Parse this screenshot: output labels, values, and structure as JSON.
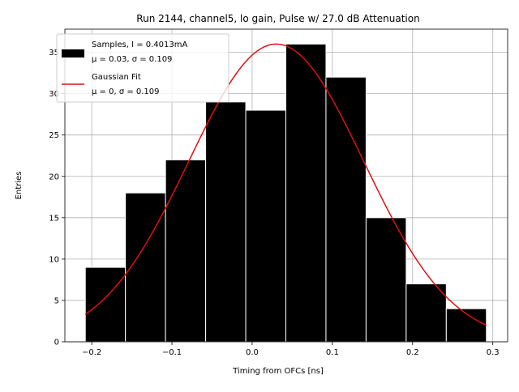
{
  "chart_data": {
    "type": "bar",
    "title": "Run 2144, channel5, lo gain, Pulse w/ 27.0 dB Attenuation",
    "xlabel": "Timing from OFCs [ns]",
    "ylabel": "Entries",
    "xlim": [
      -0.2335,
      0.3185
    ],
    "ylim": [
      0,
      37.8
    ],
    "grid": true,
    "x_ticks": [
      {
        "value": -0.2,
        "label": "−0.2"
      },
      {
        "value": -0.1,
        "label": "−0.1"
      },
      {
        "value": 0.0,
        "label": "0.0"
      },
      {
        "value": 0.1,
        "label": "0.1"
      },
      {
        "value": 0.2,
        "label": "0.2"
      },
      {
        "value": 0.3,
        "label": "0.3"
      }
    ],
    "y_ticks": [
      {
        "value": 0,
        "label": "0"
      },
      {
        "value": 5,
        "label": "5"
      },
      {
        "value": 10,
        "label": "10"
      },
      {
        "value": 15,
        "label": "15"
      },
      {
        "value": 20,
        "label": "20"
      },
      {
        "value": 25,
        "label": "25"
      },
      {
        "value": 30,
        "label": "30"
      },
      {
        "value": 35,
        "label": "35"
      }
    ],
    "histogram": {
      "name": "Samples, I = 0.4013mA",
      "stats_label": "μ = 0.03, σ = 0.109",
      "color": "#000000",
      "edge_color": "#ffffff",
      "bin_edges": [
        -0.208,
        -0.158,
        -0.108,
        -0.058,
        -0.008,
        0.042,
        0.092,
        0.142,
        0.192,
        0.242,
        0.292
      ],
      "counts": [
        9,
        18,
        22,
        29,
        28,
        36,
        32,
        15,
        7,
        4
      ]
    },
    "fit": {
      "name": "Gaussian Fit",
      "stats_label": "μ = 0, σ = 0.109",
      "color": "#dd1111",
      "amplitude": 36.0,
      "mean": 0.03,
      "sigma": 0.109,
      "x_range": [
        -0.208,
        0.292
      ]
    },
    "legend_position": "top-left"
  }
}
